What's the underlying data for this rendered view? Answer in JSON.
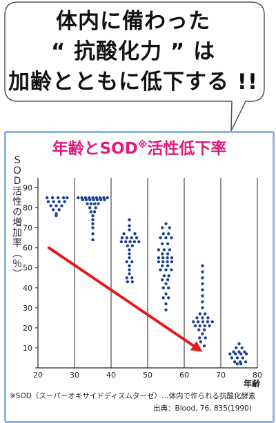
{
  "headline": {
    "line1": "体内に備わった",
    "line2": "“ 抗酸化力 ” は",
    "line3": "加齢とともに低下する !!"
  },
  "chart_data": {
    "type": "scatter",
    "title": "年齢とSOD",
    "title_mark": "※",
    "title_suffix": "活性低下率",
    "xlabel": "年齢",
    "ylabel": "ＳＯＤ活性の増加率（％）",
    "xlim": [
      20,
      80
    ],
    "ylim": [
      0,
      95
    ],
    "xticks": [
      20,
      30,
      40,
      50,
      60,
      70,
      80
    ],
    "yticks": [
      0,
      10,
      20,
      30,
      40,
      50,
      60,
      70,
      80,
      90
    ],
    "grid": "vertical",
    "series": [
      {
        "group": "20s",
        "points": [
          [
            22.5,
            85
          ],
          [
            24.0,
            85
          ],
          [
            25.5,
            85
          ],
          [
            27.0,
            85
          ],
          [
            28.0,
            85
          ],
          [
            22.8,
            83
          ],
          [
            24.3,
            83
          ],
          [
            25.8,
            83
          ],
          [
            27.3,
            83
          ],
          [
            23.5,
            81
          ],
          [
            25.0,
            81
          ],
          [
            26.5,
            81
          ],
          [
            24.2,
            79
          ],
          [
            25.8,
            79
          ],
          [
            25.0,
            77
          ],
          [
            25.0,
            76
          ]
        ]
      },
      {
        "group": "30s",
        "points": [
          [
            31.0,
            85
          ],
          [
            32.0,
            85
          ],
          [
            33.0,
            85
          ],
          [
            34.0,
            85
          ],
          [
            35.0,
            85
          ],
          [
            36.0,
            85
          ],
          [
            37.0,
            85
          ],
          [
            38.0,
            85
          ],
          [
            39.0,
            85
          ],
          [
            32.2,
            84
          ],
          [
            33.2,
            84
          ],
          [
            34.2,
            84
          ],
          [
            35.2,
            84
          ],
          [
            36.2,
            84
          ],
          [
            37.2,
            84
          ],
          [
            38.2,
            84
          ],
          [
            33.5,
            82
          ],
          [
            34.5,
            82
          ],
          [
            35.5,
            82
          ],
          [
            36.5,
            82
          ],
          [
            34.2,
            80
          ],
          [
            35.8,
            80
          ],
          [
            34.5,
            78
          ],
          [
            35.5,
            78
          ],
          [
            35.0,
            76
          ],
          [
            35.0,
            74
          ],
          [
            35.0,
            72
          ],
          [
            35.0,
            70
          ],
          [
            35.0,
            67
          ],
          [
            35.0,
            64
          ]
        ]
      },
      {
        "group": "40s",
        "points": [
          [
            45.0,
            74
          ],
          [
            45.0,
            71
          ],
          [
            45.0,
            69
          ],
          [
            43.5,
            67
          ],
          [
            46.5,
            67
          ],
          [
            43.0,
            65
          ],
          [
            44.3,
            65
          ],
          [
            45.6,
            65
          ],
          [
            47.0,
            65
          ],
          [
            42.8,
            63
          ],
          [
            44.0,
            63
          ],
          [
            45.2,
            63
          ],
          [
            46.4,
            63
          ],
          [
            47.6,
            63
          ],
          [
            44.5,
            61
          ],
          [
            45.8,
            61
          ],
          [
            45.0,
            59
          ],
          [
            45.0,
            57
          ],
          [
            45.0,
            55
          ],
          [
            44.3,
            53
          ],
          [
            45.7,
            53
          ],
          [
            45.0,
            51
          ],
          [
            45.0,
            49
          ],
          [
            45.0,
            47
          ],
          [
            44.3,
            45
          ],
          [
            45.7,
            45
          ],
          [
            44.5,
            43
          ],
          [
            45.8,
            43
          ]
        ]
      },
      {
        "group": "50s",
        "points": [
          [
            55.0,
            72
          ],
          [
            54.0,
            70
          ],
          [
            56.0,
            70
          ],
          [
            54.3,
            67
          ],
          [
            55.7,
            67
          ],
          [
            53.5,
            65
          ],
          [
            55.0,
            65
          ],
          [
            56.5,
            65
          ],
          [
            54.0,
            62
          ],
          [
            55.5,
            62
          ],
          [
            53.0,
            59
          ],
          [
            54.5,
            59
          ],
          [
            56.0,
            59
          ],
          [
            54.0,
            57
          ],
          [
            55.5,
            57
          ],
          [
            53.0,
            55
          ],
          [
            54.2,
            55
          ],
          [
            55.4,
            55
          ],
          [
            56.6,
            55
          ],
          [
            53.0,
            53
          ],
          [
            54.2,
            53
          ],
          [
            55.4,
            53
          ],
          [
            56.6,
            53
          ],
          [
            54.0,
            51
          ],
          [
            55.5,
            51
          ],
          [
            53.5,
            49
          ],
          [
            55.0,
            49
          ],
          [
            56.5,
            49
          ],
          [
            54.5,
            46
          ],
          [
            55.8,
            46
          ],
          [
            54.0,
            44
          ],
          [
            55.5,
            44
          ],
          [
            55.0,
            42
          ],
          [
            54.3,
            40
          ],
          [
            55.7,
            40
          ],
          [
            55.0,
            37
          ],
          [
            54.3,
            35
          ],
          [
            55.7,
            35
          ],
          [
            55.0,
            32
          ],
          [
            55.0,
            29
          ]
        ]
      },
      {
        "group": "60s",
        "points": [
          [
            65.0,
            51
          ],
          [
            65.0,
            48
          ],
          [
            65.0,
            45
          ],
          [
            65.0,
            42
          ],
          [
            65.0,
            39
          ],
          [
            65.0,
            36
          ],
          [
            65.0,
            33
          ],
          [
            65.0,
            30
          ],
          [
            64.3,
            27
          ],
          [
            65.7,
            27
          ],
          [
            63.5,
            25
          ],
          [
            65.0,
            25
          ],
          [
            66.5,
            25
          ],
          [
            62.5,
            23
          ],
          [
            63.8,
            23
          ],
          [
            65.1,
            23
          ],
          [
            66.4,
            23
          ],
          [
            67.7,
            23
          ],
          [
            63.0,
            21
          ],
          [
            64.3,
            21
          ],
          [
            65.6,
            21
          ],
          [
            66.9,
            21
          ],
          [
            64.0,
            19
          ],
          [
            65.5,
            19
          ],
          [
            65.0,
            17
          ],
          [
            64.2,
            15
          ],
          [
            65.8,
            15
          ],
          [
            64.5,
            13
          ],
          [
            65.5,
            11
          ]
        ]
      },
      {
        "group": "70s",
        "points": [
          [
            75.0,
            12
          ],
          [
            74.2,
            10
          ],
          [
            75.8,
            10
          ],
          [
            73.5,
            8
          ],
          [
            75.0,
            8
          ],
          [
            76.5,
            8
          ],
          [
            72.5,
            7
          ],
          [
            74.0,
            7
          ],
          [
            75.5,
            7
          ],
          [
            77.0,
            7
          ],
          [
            73.0,
            5
          ],
          [
            74.5,
            5
          ],
          [
            76.0,
            5
          ],
          [
            73.8,
            3
          ],
          [
            75.3,
            3
          ],
          [
            76.8,
            3
          ],
          [
            74.5,
            2
          ],
          [
            75.5,
            2
          ]
        ]
      }
    ],
    "trend_arrow": {
      "from": [
        23,
        60
      ],
      "to": [
        65,
        8
      ]
    }
  },
  "notes": {
    "footnote": "※SOD（スーパーオキサイドディスムターゼ）…体内で作られる抗酸化酵素",
    "source": "出典：Blood, 76, 835(1990)"
  },
  "colors": {
    "title": "#e3197b",
    "dots": "#1c3f94",
    "arrow": "#e0191f",
    "panel_border": "#8fb4dc",
    "bubble_border": "#555555"
  }
}
